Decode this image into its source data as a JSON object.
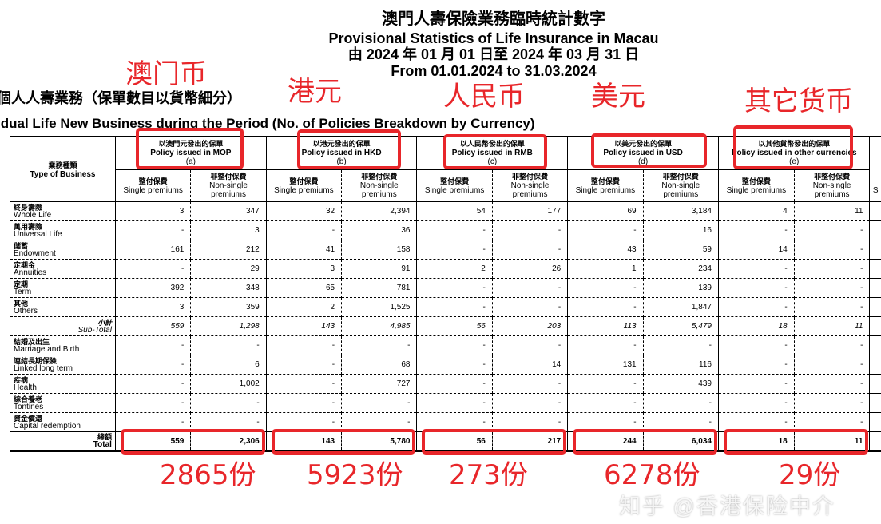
{
  "header": {
    "title_zh": "澳門人壽保險業務臨時統計數字",
    "title_en": "Provisional Statistics of Life Insurance in Macau",
    "period_zh": "由 2024 年 01 月 01 日至 2024 年 03 月 31 日",
    "period_en": "From 01.01.2024 to 31.03.2024"
  },
  "section": {
    "title_zh": "個人人壽業務（保單數目以貨幣細分）",
    "title_en_pre": "idual Life New Business during the Period (",
    "title_en_underlined": "No. of Policies",
    "title_en_post": " Breakdown by Currency)"
  },
  "table": {
    "type_header_zh": "業務種類",
    "type_header_en": "Type of Business",
    "single_zh": "整付保費",
    "single_en": "Single premiums",
    "nonsingle_zh": "非整付保費",
    "nonsingle_en": "Non-single premiums",
    "cut_col": "S",
    "currencies": [
      {
        "zh": "以澳門元發出的保單",
        "en": "Policy issued in MOP",
        "code": "(a)"
      },
      {
        "zh": "以港元發出的保單",
        "en": "Policy issued in HKD",
        "code": "(b)"
      },
      {
        "zh": "以人民幣發出的保單",
        "en": "Policy issued in RMB",
        "code": "(c)"
      },
      {
        "zh": "以美元發出的保單",
        "en": "Policy issued in USD",
        "code": "(d)"
      },
      {
        "zh": "以其他貨幣發出的保單",
        "en": "Policy issued in other currencies",
        "code": "(e)"
      }
    ],
    "rows": [
      {
        "zh": "終身壽險",
        "en": "Whole Life",
        "values": [
          "3",
          "347",
          "32",
          "2,394",
          "54",
          "177",
          "69",
          "3,184",
          "4",
          "11"
        ]
      },
      {
        "zh": "萬用壽險",
        "en": "Universal Life",
        "values": [
          "-",
          "3",
          "-",
          "36",
          "-",
          "-",
          "-",
          "16",
          "-",
          "-"
        ]
      },
      {
        "zh": "儲蓄",
        "en": "Endowment",
        "values": [
          "161",
          "212",
          "41",
          "158",
          "-",
          "-",
          "43",
          "59",
          "14",
          "-"
        ]
      },
      {
        "zh": "定期金",
        "en": "Annuities",
        "values": [
          "-",
          "29",
          "3",
          "91",
          "2",
          "26",
          "1",
          "234",
          "-",
          "-"
        ]
      },
      {
        "zh": "定期",
        "en": "Term",
        "values": [
          "392",
          "348",
          "65",
          "781",
          "-",
          "-",
          "-",
          "139",
          "-",
          "-"
        ]
      },
      {
        "zh": "其他",
        "en": "Others",
        "values": [
          "3",
          "359",
          "2",
          "1,525",
          "-",
          "-",
          "-",
          "1,847",
          "-",
          "-"
        ]
      },
      {
        "zh": "小計",
        "en": "Sub-Total",
        "kind": "subtotal",
        "values": [
          "559",
          "1,298",
          "143",
          "4,985",
          "56",
          "203",
          "113",
          "5,479",
          "18",
          "11"
        ]
      },
      {
        "zh": "結婚及出生",
        "en": "Marriage and Birth",
        "values": [
          "-",
          "-",
          "-",
          "-",
          "-",
          "-",
          "-",
          "-",
          "-",
          "-"
        ]
      },
      {
        "zh": "連結長期保險",
        "en": "Linked long term",
        "values": [
          "-",
          "6",
          "-",
          "68",
          "-",
          "14",
          "131",
          "116",
          "-",
          "-"
        ]
      },
      {
        "zh": "疾病",
        "en": "Health",
        "values": [
          "-",
          "1,002",
          "-",
          "727",
          "-",
          "-",
          "-",
          "439",
          "-",
          "-"
        ]
      },
      {
        "zh": "綜合養老",
        "en": "Tontines",
        "values": [
          "-",
          "-",
          "-",
          "-",
          "-",
          "-",
          "-",
          "-",
          "-",
          "-"
        ]
      },
      {
        "zh": "資金償還",
        "en": "Capital redemption",
        "values": [
          "-",
          "-",
          "-",
          "-",
          "-",
          "-",
          "-",
          "-",
          "-",
          "-"
        ]
      },
      {
        "zh": "總額",
        "en": "Total",
        "kind": "total",
        "values": [
          "559",
          "2,306",
          "143",
          "5,780",
          "56",
          "217",
          "244",
          "6,034",
          "18",
          "11"
        ]
      }
    ]
  },
  "annotations": {
    "labels": [
      "澳门币",
      "港元",
      "人民币",
      "美元",
      "其它货币"
    ],
    "totals": [
      "2865份",
      "5923份",
      "273份",
      "6278份",
      "29份"
    ],
    "color": "#e8262a"
  },
  "watermark": "知乎 @香港保险中介"
}
